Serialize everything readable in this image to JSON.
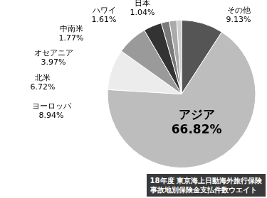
{
  "chart_data": {
    "type": "pie",
    "title": [
      "18年度 東京海上日動海外旅行保険",
      "事故地別保険金支払件数ウエイト"
    ],
    "categories": [
      "その他",
      "アジア",
      "ヨーロッパ",
      "北米",
      "オセアニア",
      "中南米",
      "ハワイ",
      "日本"
    ],
    "values": [
      9.13,
      66.82,
      8.94,
      6.72,
      3.97,
      1.77,
      1.61,
      1.04
    ],
    "value_labels": [
      "9.13%",
      "66.82%",
      "8.94%",
      "6.72%",
      "3.97%",
      "1.77%",
      "1.61%",
      "1.04%"
    ],
    "colors": [
      "#555555",
      "#bdbdbd",
      "#ececec",
      "#9a9a9a",
      "#333333",
      "#7a7a7a",
      "#aaaaaa",
      "#cfcfcf"
    ],
    "data_labels": true
  }
}
